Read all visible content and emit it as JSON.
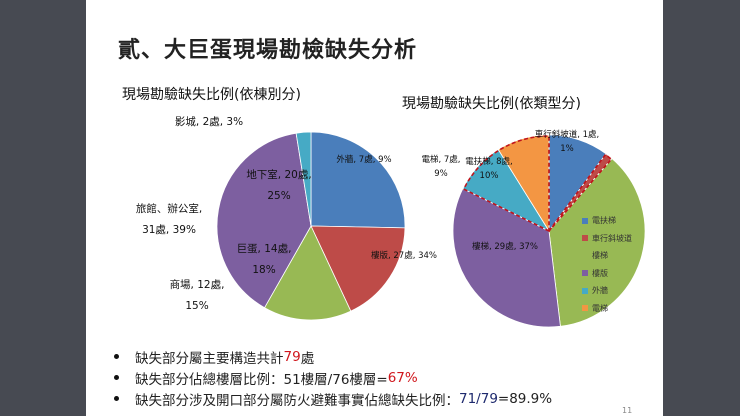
{
  "slide": {
    "title": "貳、大巨蛋現場勘檢缺失分析",
    "page_number": "11",
    "bullets": [
      {
        "prefix": "缺失部分屬主要構造共計",
        "highlight": "79",
        "suffix": "處"
      },
      {
        "prefix": "缺失部分佔總樓層比例：51樓層/76樓層=",
        "highlight": "67%",
        "suffix": ""
      },
      {
        "prefix": "缺失部分涉及開口部分屬防火避難事實佔總缺失比例：",
        "highlight": "71/79",
        "suffix": "=89.9%"
      }
    ]
  },
  "chart_data": [
    {
      "type": "pie",
      "title": "現場勘驗缺失比例(依棟別分)",
      "categories": [
        "地下室",
        "巨蛋",
        "商場",
        "旅館、辦公室",
        "影城"
      ],
      "values": [
        20,
        14,
        12,
        31,
        2
      ],
      "percentages": [
        25,
        18,
        15,
        39,
        3
      ],
      "colors": [
        "#4a7ebb",
        "#be4b48",
        "#98b954",
        "#7d5fa0",
        "#46aac5"
      ],
      "labels": [
        [
          "地下室, 20處,",
          "25%"
        ],
        [
          "巨蛋, 14處,",
          "18%"
        ],
        [
          "商場, 12處,",
          "15%"
        ],
        [
          "旅館、辦公室,",
          "31處, 39%"
        ],
        [
          "影城, 2處, 3%"
        ]
      ],
      "unit": "處",
      "legend": "none"
    },
    {
      "type": "pie",
      "title": "現場勘驗缺失比例(依類型分)",
      "categories": [
        "電扶梯",
        "車行斜坡道",
        "樓梯",
        "樓版",
        "外牆",
        "電梯"
      ],
      "values": [
        8,
        1,
        29,
        27,
        7,
        7
      ],
      "percentages": [
        10,
        1,
        37,
        34,
        9,
        9
      ],
      "colors": [
        "#4a7ebb",
        "#be4b48",
        "#98b954",
        "#7d5fa0",
        "#46aac5",
        "#f39643"
      ],
      "labels": [
        [
          "電扶梯, 8處,",
          "10%"
        ],
        [
          "車行斜坡道, 1處,",
          "1%"
        ],
        [
          "樓梯, 29處, 37%"
        ],
        [
          "樓版, 27處, 34%"
        ],
        [
          "外牆, 7處, 9%"
        ],
        [
          "電梯, 7處,",
          "9%"
        ]
      ],
      "unit": "處",
      "legend": "right",
      "annotation": "red dashed outline around 車行斜坡道, 外牆 and 電梯 wedges"
    }
  ]
}
